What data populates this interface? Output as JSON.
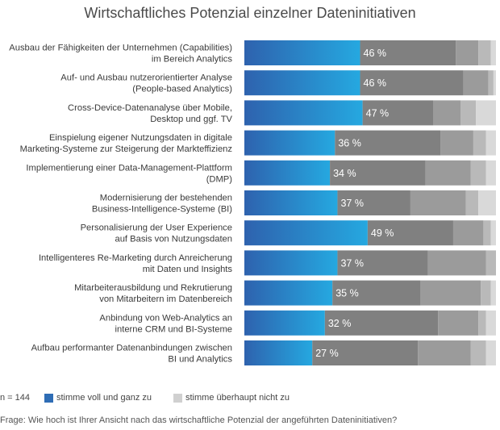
{
  "chart_data": {
    "type": "bar",
    "stacked": true,
    "orientation": "horizontal",
    "title": "Wirtschaftliches Potenzial einzelner Dateninitiativen",
    "categories": [
      "Ausbau der Fähigkeiten der Unternehmen (Capabilities)\nim Bereich Analytics",
      "Auf- und Ausbau nutzerorientierter Analyse\n(People-based Analytics)",
      "Cross-Device-Datenanalyse über Mobile,\nDesktop und ggf. TV",
      "Einspielung eigener Nutzungsdaten in digitale\nMarketing-Systeme zur Steigerung der Markteffizienz",
      "Implementierung einer Data-Management-Plattform\n(DMP)",
      "Modernisierung der bestehenden\nBusiness-Intelligence-Systeme (BI)",
      "Personalisierung der User Experience\nauf Basis von Nutzungsdaten",
      "Intelligenteres Re-Marketing durch Anreicherung\nmit Daten und Insights",
      "Mitarbeiterausbildung und Rekrutierung\nvon Mitarbeitern im Datenbereich",
      "Anbindung von Web-Analytics an\ninterne CRM und BI-Systeme",
      "Aufbau performanter Datenanbindungen zwischen\nBI und Analytics"
    ],
    "series": [
      {
        "name": "stimme voll und ganz zu",
        "values": [
          46,
          46,
          47,
          36,
          34,
          37,
          49,
          37,
          35,
          32,
          27
        ],
        "color": "#2f6db5",
        "labels": [
          "46 %",
          "46 %",
          "47 %",
          "36 %",
          "34 %",
          "37 %",
          "49 %",
          "37 %",
          "35 %",
          "32 %",
          "27 %"
        ]
      },
      {
        "values": [
          38,
          41,
          28,
          42,
          38,
          29,
          34,
          36,
          35,
          45,
          42
        ],
        "color": "#808080"
      },
      {
        "values": [
          9,
          10,
          11,
          13,
          18,
          22,
          12,
          23,
          24,
          16,
          21
        ],
        "color": "#9b9b9b"
      },
      {
        "values": [
          5,
          2,
          6,
          5,
          6,
          5,
          3,
          4,
          4,
          3,
          6
        ],
        "color": "#b9b9b9"
      },
      {
        "name": "stimme überhaupt nicht zu",
        "values": [
          2,
          1,
          8,
          4,
          4,
          7,
          2,
          0,
          2,
          4,
          4
        ],
        "color": "#d9d9d9"
      }
    ],
    "xlim": [
      0,
      100
    ],
    "legend_position": "bottom-left"
  },
  "footer": {
    "n_label": "n = 144",
    "legend_first": "stimme voll und ganz zu",
    "legend_last": "stimme überhaupt nicht zu",
    "question": "Frage: Wie hoch ist Ihrer Ansicht nach das wirtschaftliche Potenzial der angeführten Dateninitiativen?"
  }
}
